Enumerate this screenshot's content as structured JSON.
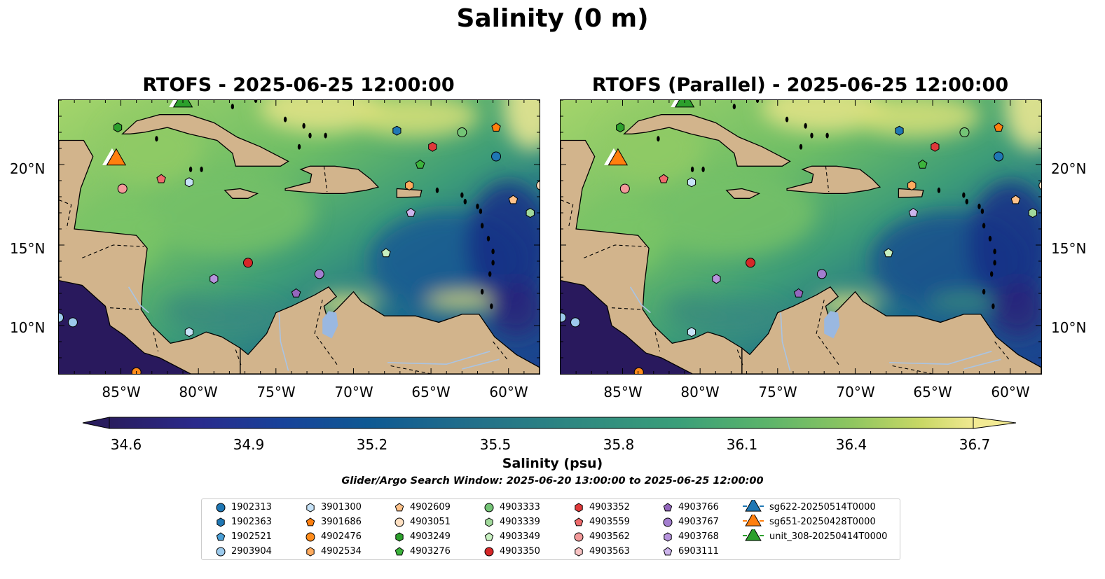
{
  "figure": {
    "suptitle": "Salinity (0 m)",
    "left_title": "RTOFS - 2025-06-25 12:00:00",
    "right_title": "RTOFS (Parallel) - 2025-06-25 12:00:00",
    "search_window": "Glider/Argo Search Window: 2025-06-20 13:00:00 to 2025-06-25 12:00:00"
  },
  "axes": {
    "lon_ticks": [
      "85°W",
      "80°W",
      "75°W",
      "70°W",
      "65°W",
      "60°W"
    ],
    "lat_ticks": [
      "20°N",
      "15°N",
      "10°N"
    ],
    "lon_range": [
      -89,
      -58
    ],
    "lat_range": [
      7,
      24
    ]
  },
  "colorbar": {
    "label": "Salinity (psu)",
    "ticks": [
      "34.6",
      "34.9",
      "35.2",
      "35.5",
      "35.8",
      "36.1",
      "36.4",
      "36.7"
    ],
    "range": [
      34.6,
      36.7
    ],
    "extend": "both",
    "colormap": "haline"
  },
  "colors": {
    "land": "#d2b48c",
    "pacific": "#29195d",
    "lake": "#9ab8e0",
    "blue": "#1f77b4",
    "orange": "#ff7f0e",
    "green": "#2ca02c"
  },
  "legend": {
    "items": [
      {
        "label": "1902313",
        "marker": "circle",
        "color": "#1f77b4"
      },
      {
        "label": "1902363",
        "marker": "hexagon",
        "color": "#1f77b4"
      },
      {
        "label": "1902521",
        "marker": "pentagon",
        "color": "#4a9fd6"
      },
      {
        "label": "2903904",
        "marker": "circle",
        "color": "#9ccaec"
      },
      {
        "label": "3901300",
        "marker": "hexagon",
        "color": "#c6e2f7"
      },
      {
        "label": "3901686",
        "marker": "pentagon",
        "color": "#ff7f0e"
      },
      {
        "label": "4902476",
        "marker": "circle",
        "color": "#ff8c1a"
      },
      {
        "label": "4902534",
        "marker": "hexagon",
        "color": "#ffab5e"
      },
      {
        "label": "4902609",
        "marker": "pentagon",
        "color": "#ffc28a"
      },
      {
        "label": "4903051",
        "marker": "circle",
        "color": "#ffe0c2"
      },
      {
        "label": "4903249",
        "marker": "hexagon",
        "color": "#2ca02c"
      },
      {
        "label": "4903276",
        "marker": "pentagon",
        "color": "#3cb33c"
      },
      {
        "label": "4903333",
        "marker": "circle",
        "color": "#74c476"
      },
      {
        "label": "4903339",
        "marker": "hexagon",
        "color": "#a1d99b"
      },
      {
        "label": "4903349",
        "marker": "pentagon",
        "color": "#c7f0c0"
      },
      {
        "label": "4903350",
        "marker": "circle",
        "color": "#d62728"
      },
      {
        "label": "4903352",
        "marker": "hexagon",
        "color": "#e0393a"
      },
      {
        "label": "4903559",
        "marker": "pentagon",
        "color": "#ee6a6b"
      },
      {
        "label": "4903562",
        "marker": "circle",
        "color": "#f39a9a"
      },
      {
        "label": "4903563",
        "marker": "hexagon",
        "color": "#f8c3c3"
      },
      {
        "label": "4903766",
        "marker": "pentagon",
        "color": "#9467bd"
      },
      {
        "label": "4903767",
        "marker": "circle",
        "color": "#a37ecf"
      },
      {
        "label": "4903768",
        "marker": "hexagon",
        "color": "#b693dc"
      },
      {
        "label": "6903111",
        "marker": "pentagon",
        "color": "#cdb4ec"
      },
      {
        "label": "sg622-20250514T0000",
        "marker": "triangle",
        "color": "#1f77b4"
      },
      {
        "label": "sg651-20250428T0000",
        "marker": "triangle",
        "color": "#ff7f0e"
      },
      {
        "label": "unit_308-20250414T0000",
        "marker": "triangle",
        "color": "#2ca02c"
      }
    ]
  },
  "argo_positions": [
    {
      "id": "4903249",
      "lon": -85.2,
      "lat": 22.3
    },
    {
      "id": "1902363",
      "lon": -67.2,
      "lat": 22.1
    },
    {
      "id": "4903333",
      "lon": -63.0,
      "lat": 22.0
    },
    {
      "id": "3901686",
      "lon": -60.8,
      "lat": 22.3
    },
    {
      "id": "4903352",
      "lon": -64.9,
      "lat": 21.1
    },
    {
      "id": "1902313",
      "lon": -60.8,
      "lat": 20.5
    },
    {
      "id": "4903276",
      "lon": -65.7,
      "lat": 20.0
    },
    {
      "id": "4903562",
      "lon": -84.9,
      "lat": 18.5
    },
    {
      "id": "4903559",
      "lon": -82.4,
      "lat": 19.1
    },
    {
      "id": "3901300",
      "lon": -80.6,
      "lat": 18.9
    },
    {
      "id": "4902534",
      "lon": -66.4,
      "lat": 18.7
    },
    {
      "id": "4903051",
      "lon": -57.9,
      "lat": 18.7
    },
    {
      "id": "4902609",
      "lon": -59.7,
      "lat": 17.8
    },
    {
      "id": "6903111",
      "lon": -66.3,
      "lat": 17.0
    },
    {
      "id": "4903339",
      "lon": -58.6,
      "lat": 17.0
    },
    {
      "id": "4903349",
      "lon": -67.9,
      "lat": 14.5
    },
    {
      "id": "4903350",
      "lon": -76.8,
      "lat": 13.9
    },
    {
      "id": "4903767",
      "lon": -72.2,
      "lat": 13.2
    },
    {
      "id": "4903768",
      "lon": -79.0,
      "lat": 12.9
    },
    {
      "id": "4903766",
      "lon": -73.7,
      "lat": 12.0
    },
    {
      "id": "2903904",
      "lon": -88.1,
      "lat": 10.2
    },
    {
      "id": "2903904",
      "lon": -89.0,
      "lat": 10.5
    },
    {
      "id": "3901300",
      "lon": -80.6,
      "lat": 9.6
    },
    {
      "id": "4902476",
      "lon": -84.0,
      "lat": 7.1
    }
  ],
  "glider_positions": [
    {
      "id": "sg651-20250428T0000",
      "lon": -85.3,
      "lat": 20.4
    },
    {
      "id": "unit_308-20250414T0000",
      "lon": -81.0,
      "lat": 24.0
    }
  ]
}
